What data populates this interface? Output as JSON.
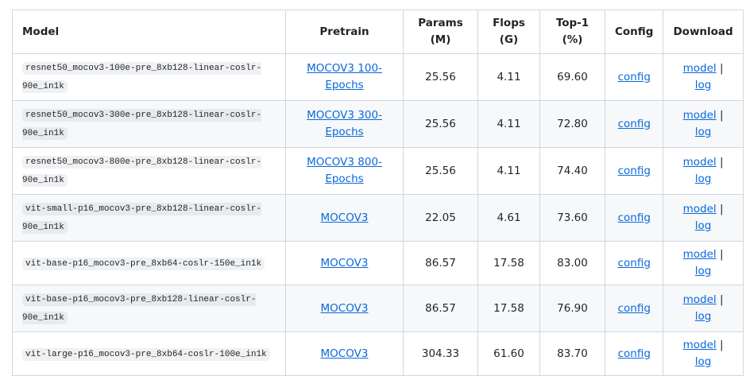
{
  "table": {
    "header": [
      "Model",
      "Pretrain",
      "Params (M)",
      "Flops (G)",
      "Top-1 (%)",
      "Config",
      "Download"
    ],
    "rows": [
      {
        "model": "resnet50_mocov3-100e-pre_8xb128-linear-coslr-90e_in1k",
        "pretrain": "MOCOV3 100-Epochs",
        "params": "25.56",
        "flops": "4.11",
        "top1": "69.60",
        "config": "config",
        "model_link": "model",
        "separator": "|",
        "log_link": "log"
      },
      {
        "model": "resnet50_mocov3-300e-pre_8xb128-linear-coslr-90e_in1k",
        "pretrain": "MOCOV3 300-Epochs",
        "params": "25.56",
        "flops": "4.11",
        "top1": "72.80",
        "config": "config",
        "model_link": "model",
        "separator": "|",
        "log_link": "log"
      },
      {
        "model": "resnet50_mocov3-800e-pre_8xb128-linear-coslr-90e_in1k",
        "pretrain": "MOCOV3 800-Epochs",
        "params": "25.56",
        "flops": "4.11",
        "top1": "74.40",
        "config": "config",
        "model_link": "model",
        "separator": "|",
        "log_link": "log"
      },
      {
        "model": "vit-small-p16_mocov3-pre_8xb128-linear-coslr-90e_in1k",
        "pretrain": "MOCOV3",
        "params": "22.05",
        "flops": "4.61",
        "top1": "73.60",
        "config": "config",
        "model_link": "model",
        "separator": "|",
        "log_link": "log"
      },
      {
        "model": "vit-base-p16_mocov3-pre_8xb64-coslr-150e_in1k",
        "pretrain": "MOCOV3",
        "params": "86.57",
        "flops": "17.58",
        "top1": "83.00",
        "config": "config",
        "model_link": "model",
        "separator": "|",
        "log_link": "log"
      },
      {
        "model": "vit-base-p16_mocov3-pre_8xb128-linear-coslr-90e_in1k",
        "pretrain": "MOCOV3",
        "params": "86.57",
        "flops": "17.58",
        "top1": "76.90",
        "config": "config",
        "model_link": "model",
        "separator": "|",
        "log_link": "log"
      },
      {
        "model": "vit-large-p16_mocov3-pre_8xb64-coslr-100e_in1k",
        "pretrain": "MOCOV3",
        "params": "304.33",
        "flops": "61.60",
        "top1": "83.70",
        "config": "config",
        "model_link": "model",
        "separator": "|",
        "log_link": "log"
      }
    ]
  }
}
